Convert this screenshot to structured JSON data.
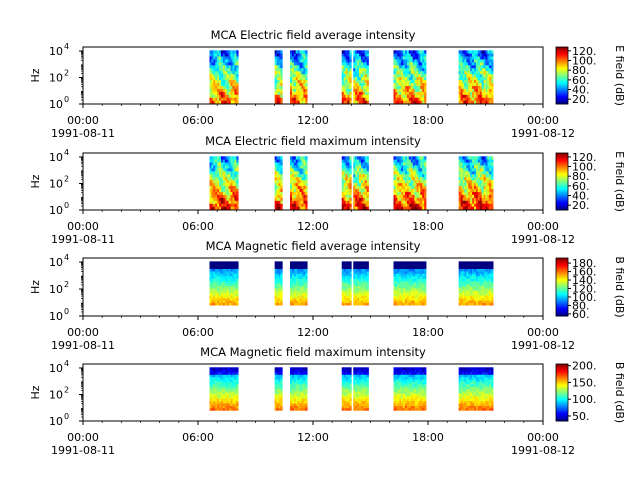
{
  "chart_data": [
    {
      "type": "heatmap",
      "title": "MCA  Electric field average intensity",
      "ylabel": "Hz",
      "yscale": "log",
      "ylim_log10": [
        0,
        4.3
      ],
      "yticks": [
        {
          "label": "10",
          "exp": "0",
          "value": 0
        },
        {
          "label": "10",
          "exp": "2",
          "value": 2
        },
        {
          "label": "10",
          "exp": "4",
          "value": 4
        }
      ],
      "xlim_hours": [
        0,
        24
      ],
      "xticks": [
        {
          "label": "00:00",
          "value": 0
        },
        {
          "label": "06:00",
          "value": 6
        },
        {
          "label": "12:00",
          "value": 12
        },
        {
          "label": "18:00",
          "value": 18
        },
        {
          "label": "00:00",
          "value": 24
        }
      ],
      "date_labels": {
        "start": "1991-08-11",
        "end": "1991-08-12"
      },
      "data_intervals_hours": [
        [
          6.6,
          8.1
        ],
        [
          10.0,
          10.4
        ],
        [
          10.8,
          11.7
        ],
        [
          13.5,
          14.0
        ],
        [
          14.1,
          14.9
        ],
        [
          16.2,
          17.9
        ],
        [
          19.6,
          21.4
        ]
      ],
      "colorbar": {
        "label": "E field (dB)",
        "ticks": [
          20,
          40,
          60,
          80,
          100,
          120
        ],
        "range": [
          10,
          128
        ]
      }
    },
    {
      "type": "heatmap",
      "title": "MCA  Electric field maximum intensity",
      "ylabel": "Hz",
      "yscale": "log",
      "ylim_log10": [
        0,
        4.3
      ],
      "yticks": [
        {
          "label": "10",
          "exp": "0",
          "value": 0
        },
        {
          "label": "10",
          "exp": "2",
          "value": 2
        },
        {
          "label": "10",
          "exp": "4",
          "value": 4
        }
      ],
      "xlim_hours": [
        0,
        24
      ],
      "xticks": [
        {
          "label": "00:00",
          "value": 0
        },
        {
          "label": "06:00",
          "value": 6
        },
        {
          "label": "12:00",
          "value": 12
        },
        {
          "label": "18:00",
          "value": 18
        },
        {
          "label": "00:00",
          "value": 24
        }
      ],
      "date_labels": {
        "start": "1991-08-11",
        "end": "1991-08-12"
      },
      "data_intervals_hours": [
        [
          6.6,
          8.1
        ],
        [
          10.0,
          10.4
        ],
        [
          10.8,
          11.7
        ],
        [
          13.5,
          14.0
        ],
        [
          14.1,
          14.9
        ],
        [
          16.2,
          17.9
        ],
        [
          19.6,
          21.4
        ]
      ],
      "colorbar": {
        "label": "E field (dB)",
        "ticks": [
          20,
          40,
          60,
          80,
          100,
          120
        ],
        "range": [
          10,
          128
        ]
      }
    },
    {
      "type": "heatmap",
      "title": "MCA  Magnetic field average intensity",
      "ylabel": "Hz",
      "yscale": "log",
      "ylim_log10": [
        0,
        4.3
      ],
      "yticks": [
        {
          "label": "10",
          "exp": "0",
          "value": 0
        },
        {
          "label": "10",
          "exp": "2",
          "value": 2
        },
        {
          "label": "10",
          "exp": "4",
          "value": 4
        }
      ],
      "xlim_hours": [
        0,
        24
      ],
      "xticks": [
        {
          "label": "00:00",
          "value": 0
        },
        {
          "label": "06:00",
          "value": 6
        },
        {
          "label": "12:00",
          "value": 12
        },
        {
          "label": "18:00",
          "value": 18
        },
        {
          "label": "00:00",
          "value": 24
        }
      ],
      "date_labels": {
        "start": "1991-08-11",
        "end": "1991-08-12"
      },
      "data_intervals_hours": [
        [
          6.6,
          8.1
        ],
        [
          10.0,
          10.4
        ],
        [
          10.8,
          11.7
        ],
        [
          13.5,
          14.0
        ],
        [
          14.1,
          14.9
        ],
        [
          16.2,
          17.9
        ],
        [
          19.6,
          21.4
        ]
      ],
      "colorbar": {
        "label": "B field (dB)",
        "ticks": [
          60,
          80,
          100,
          120,
          140,
          160,
          180
        ],
        "range": [
          55,
          192
        ]
      }
    },
    {
      "type": "heatmap",
      "title": "MCA  Magnetic field maximum intensity",
      "ylabel": "Hz",
      "yscale": "log",
      "ylim_log10": [
        0,
        4.3
      ],
      "yticks": [
        {
          "label": "10",
          "exp": "0",
          "value": 0
        },
        {
          "label": "10",
          "exp": "2",
          "value": 2
        },
        {
          "label": "10",
          "exp": "4",
          "value": 4
        }
      ],
      "xlim_hours": [
        0,
        24
      ],
      "xticks": [
        {
          "label": "00:00",
          "value": 0
        },
        {
          "label": "06:00",
          "value": 6
        },
        {
          "label": "12:00",
          "value": 12
        },
        {
          "label": "18:00",
          "value": 18
        },
        {
          "label": "00:00",
          "value": 24
        }
      ],
      "date_labels": {
        "start": "1991-08-11",
        "end": "1991-08-12"
      },
      "data_intervals_hours": [
        [
          6.6,
          8.1
        ],
        [
          10.0,
          10.4
        ],
        [
          10.8,
          11.7
        ],
        [
          13.5,
          14.0
        ],
        [
          14.1,
          14.9
        ],
        [
          16.2,
          17.9
        ],
        [
          19.6,
          21.4
        ]
      ],
      "colorbar": {
        "label": "B field (dB)",
        "ticks": [
          50,
          100,
          150,
          200
        ],
        "range": [
          35,
          205
        ]
      }
    }
  ]
}
